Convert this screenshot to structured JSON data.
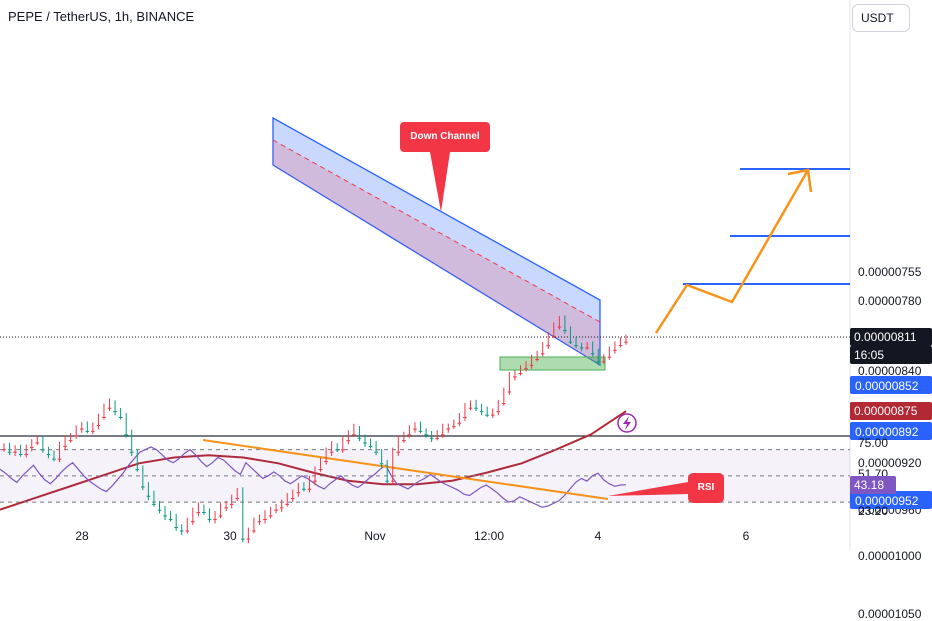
{
  "header": {
    "title": "PEPE / TetherUS, 1h, BINANCE",
    "currency_button": "USDT"
  },
  "colors": {
    "candle_up": "#089981",
    "candle_down": "#f23645",
    "ma_line": "#b22833",
    "channel_fill": "rgba(41,98,255,0.25)",
    "channel_fill_red": "rgba(242,54,69,0.18)",
    "target_line": "#2962ff",
    "projection": "#f7931a",
    "rsi_line": "#7e57c2",
    "rsi_trend": "#f7931a",
    "support_box": "#4caf50"
  },
  "annotations": {
    "down_channel": "Down Channel",
    "rsi": "RSI"
  },
  "chart_data": [
    {
      "type": "line",
      "subtype": "candlestick",
      "y_axis": {
        "ylim": [
          7.3e-06,
          1.08e-05
        ],
        "tick_labels": [
          "0.00001050",
          "0.00001000",
          "0.00000960",
          "0.00000920",
          "0.00000840",
          "0.00000780",
          "0.00000755"
        ],
        "tick_values": [
          1.05e-05,
          1e-05,
          9.6e-06,
          9.2e-06,
          8.4e-06,
          7.8e-06,
          7.55e-06
        ]
      },
      "x_axis": {
        "tick_labels": [
          "28",
          "30",
          "Nov",
          "12:00",
          "4",
          "6"
        ]
      },
      "price_tags": [
        {
          "label": "0.00000952",
          "value": 9.52e-06,
          "style": "blue"
        },
        {
          "label": "0.00000892",
          "value": 8.92e-06,
          "style": "blue"
        },
        {
          "label": "0.00000875",
          "value": 8.75e-06,
          "style": "red"
        },
        {
          "label": "0.00000852",
          "value": 8.52e-06,
          "style": "blue"
        },
        {
          "label": "0.00000811",
          "value": 8.11e-06,
          "style": "black"
        }
      ],
      "countdown": "16:05",
      "series": [
        {
          "name": "",
          "close": [
            9.05e-06,
            9.1e-06,
            9.08e-06,
            9.12e-06,
            9.06e-06,
            9.02e-06,
            9e-06,
            9.08e-06,
            9.12e-06,
            9.16e-06,
            9.05e-06,
            9e-06,
            8.96e-06,
            8.9e-06,
            8.88e-06,
            8.92e-06,
            8.87e-06,
            8.8e-06,
            8.72e-06,
            8.68e-06,
            8.75e-06,
            8.8e-06,
            8.95e-06,
            9.1e-06,
            9.25e-06,
            9.4e-06,
            9.48e-06,
            9.55e-06,
            9.6e-06,
            9.65e-06,
            9.68e-06,
            9.75e-06,
            9.78e-06,
            9.7e-06,
            9.62e-06,
            9.58e-06,
            9.62e-06,
            9.68e-06,
            9.65e-06,
            9.58e-06,
            9.55e-06,
            9.5e-06,
            9.45e-06,
            9.85e-06,
            9.78e-06,
            9.7e-06,
            9.68e-06,
            9.65e-06,
            9.6e-06,
            9.58e-06,
            9.55e-06,
            9.5e-06,
            9.45e-06,
            9.4e-06,
            9.42e-06,
            9.35e-06,
            9.25e-06,
            9.18e-06,
            9.1e-06,
            9.05e-06,
            9.08e-06,
            9e-06,
            8.95e-06,
            8.9e-06,
            8.98e-06,
            9.02e-06,
            9.05e-06,
            9.1e-06,
            9.2e-06,
            9.35e-06,
            9.1e-06,
            9e-06,
            8.95e-06,
            8.9e-06,
            8.88e-06,
            8.92e-06,
            8.95e-06,
            8.98e-06,
            8.95e-06,
            8.9e-06,
            8.88e-06,
            8.85e-06,
            8.8e-06,
            8.72e-06,
            8.68e-06,
            8.72e-06,
            8.75e-06,
            8.78e-06,
            8.75e-06,
            8.68e-06,
            8.58e-06,
            8.45e-06,
            8.42e-06,
            8.38e-06,
            8.35e-06,
            8.3e-06,
            8.25e-06,
            8.18e-06,
            8.1e-06,
            8.02e-06,
            7.95e-06,
            8.05e-06,
            8.15e-06,
            8.18e-06,
            8.2e-06,
            8.18e-06,
            8.25e-06,
            8.32e-06,
            8.28e-06,
            8.22e-06,
            8.18e-06,
            8.15e-06,
            8.11e-06
          ]
        }
      ],
      "moving_average": [
        9.6e-06,
        9.5e-06,
        9.4e-06,
        9.3e-06,
        9.2e-06,
        9.15e-06,
        9.13e-06,
        9.15e-06,
        9.2e-06,
        9.28e-06,
        9.35e-06,
        9.38e-06,
        9.38e-06,
        9.35e-06,
        9.28e-06,
        9.2e-06,
        9.08e-06,
        8.95e-06,
        8.75e-06
      ]
    },
    {
      "type": "line",
      "title": "",
      "y_axis": {
        "ylim": [
          15,
          85
        ],
        "tick_labels": [
          "75.00",
          "51.70",
          "23.20"
        ],
        "tick_values": [
          75,
          51.7,
          23.2
        ],
        "bands": [
          70,
          50,
          30
        ]
      },
      "current_value_label": "43.18",
      "series": [
        {
          "name": "",
          "values": [
            55,
            52,
            48,
            45,
            50,
            54,
            58,
            52,
            47,
            44,
            48,
            53,
            57,
            60,
            55,
            50,
            46,
            43,
            40,
            38,
            42,
            47,
            52,
            58,
            63,
            68,
            70,
            72,
            70,
            66,
            62,
            60,
            63,
            67,
            70,
            66,
            61,
            57,
            60,
            64,
            62,
            58,
            54,
            51,
            60,
            56,
            52,
            48,
            50,
            53,
            50,
            46,
            44,
            47,
            50,
            48,
            45,
            42,
            40,
            44,
            47,
            50,
            46,
            43,
            41,
            44,
            48,
            51,
            55,
            58,
            50,
            44,
            42,
            40,
            43,
            46,
            48,
            51,
            48,
            45,
            43,
            41,
            39,
            36,
            35,
            38,
            41,
            43,
            40,
            37,
            33,
            30,
            31,
            34,
            32,
            30,
            28,
            26,
            27,
            29,
            31,
            35,
            40,
            45,
            48,
            46,
            50,
            52,
            47,
            44,
            42,
            43,
            43.18
          ]
        }
      ]
    }
  ]
}
